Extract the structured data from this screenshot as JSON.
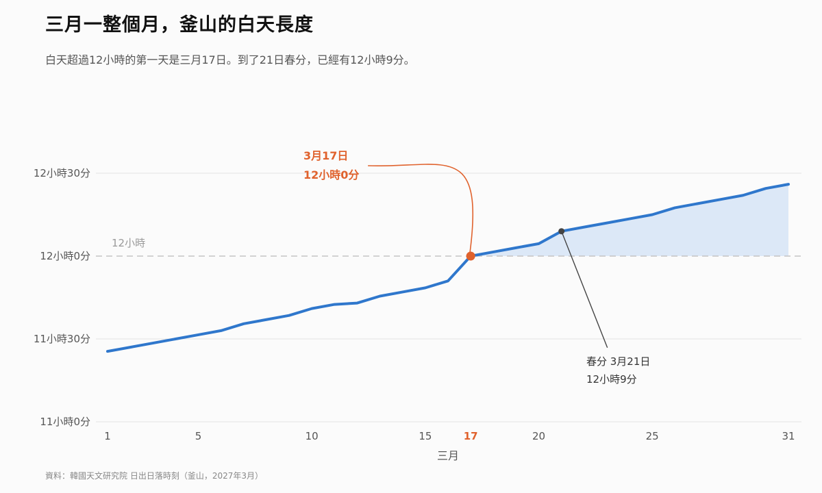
{
  "header": {
    "title": "三月一整個月，釜山的白天長度",
    "subtitle": "白天超過12小時的第一天是三月17日。到了21日春分，已經有12小時9分。"
  },
  "source": "資料：韓國天文研究院 日出日落時刻（釜山，2027年3月）",
  "colors": {
    "line": "#2f77cc",
    "area": "#dce8f7",
    "highlight": "#e0622d",
    "annotation": "#444444",
    "grid": "#e3e3e3",
    "reference": "#c4c4c4"
  },
  "chart_data": {
    "type": "area",
    "x": [
      1,
      2,
      3,
      4,
      5,
      6,
      7,
      8,
      9,
      10,
      11,
      12,
      13,
      14,
      15,
      16,
      17,
      18,
      19,
      20,
      21,
      22,
      23,
      24,
      25,
      26,
      27,
      28,
      29,
      30,
      31
    ],
    "y_minutes": [
      685.5,
      687,
      688.5,
      690,
      691.5,
      693,
      695.5,
      697,
      698.5,
      701,
      702.5,
      703,
      705.5,
      707,
      708.5,
      711,
      720,
      721.5,
      723,
      724.5,
      729,
      730.5,
      732,
      733.5,
      735,
      737.5,
      739,
      740.5,
      742,
      744.5,
      746
    ],
    "xlabel": "三月",
    "x_ticks": [
      1,
      5,
      10,
      15,
      17,
      20,
      25,
      31
    ],
    "x_tick_labels": [
      "1",
      "5",
      "10",
      "15",
      "17",
      "20",
      "25",
      "31"
    ],
    "highlight_tick": "17",
    "y_ticks": [
      660,
      690,
      720,
      750
    ],
    "y_tick_labels": [
      "11小時0分",
      "11小時30分",
      "12小時0分",
      "12小時30分"
    ],
    "ylim": [
      660,
      750
    ],
    "xlim": [
      1,
      31
    ],
    "reference_line": {
      "y": 720,
      "label": "12小時"
    },
    "annotations": [
      {
        "day": 17,
        "line1": "3月17日",
        "line2": "12小時0分"
      },
      {
        "day": 21,
        "line1": "春分 3月21日",
        "line2": "12小時9分"
      }
    ]
  }
}
